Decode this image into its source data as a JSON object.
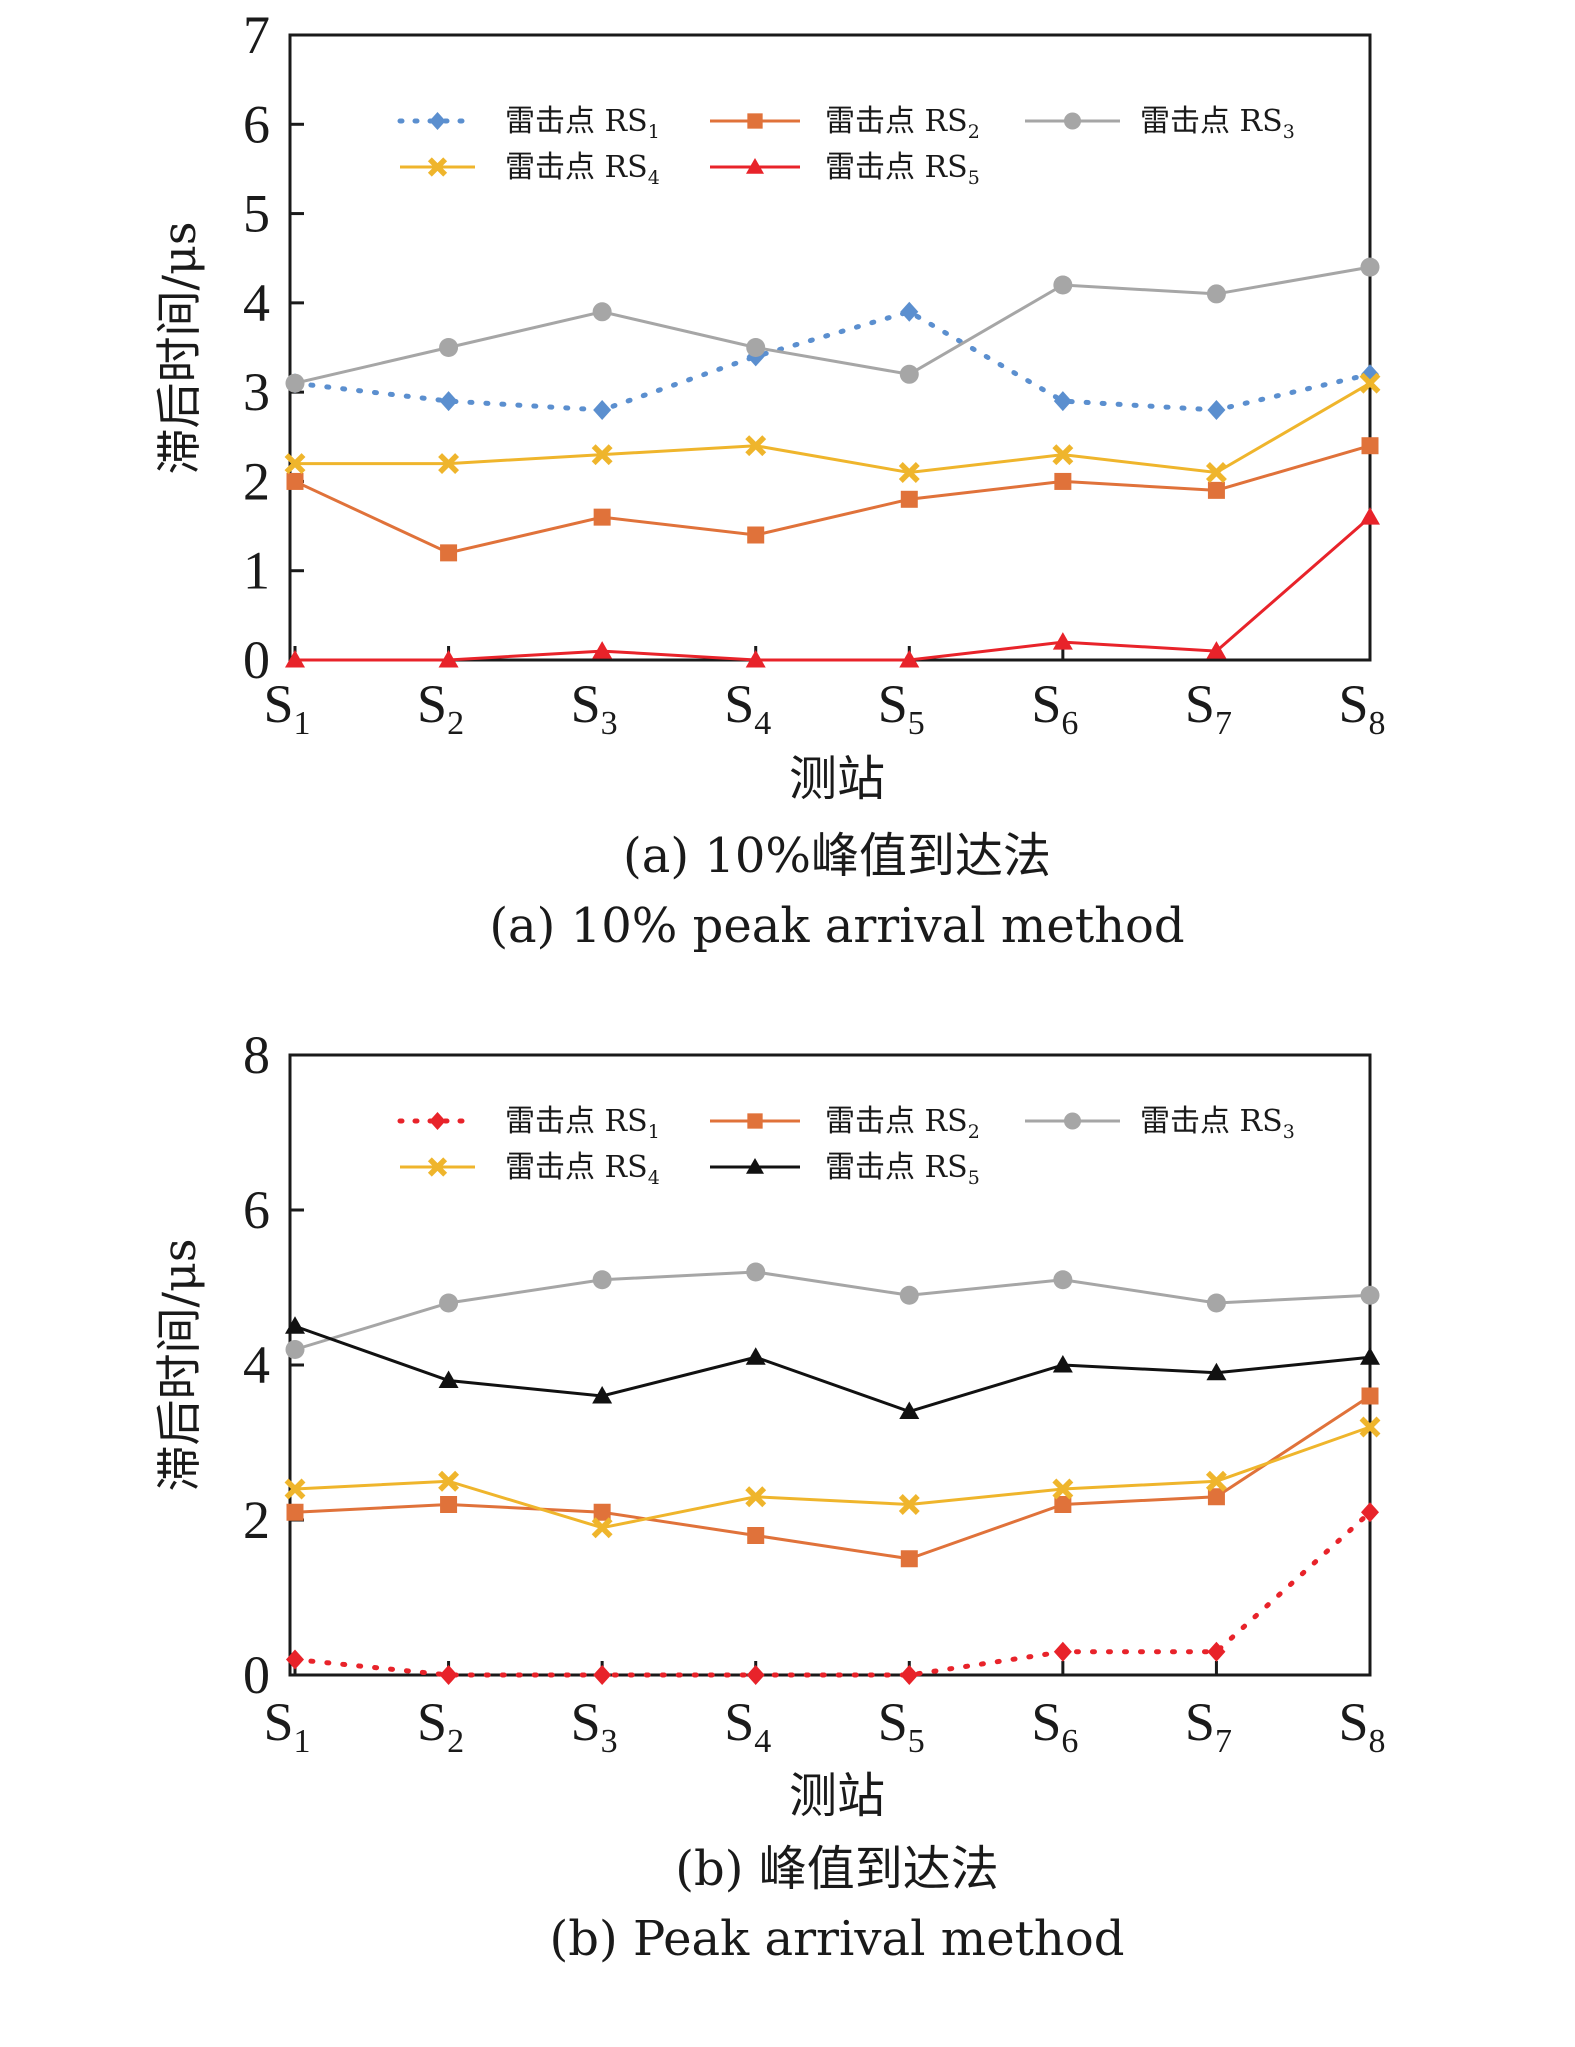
{
  "chart_data": [
    {
      "type": "line",
      "ylabel": "滞后时间/μs",
      "xlabel": "测站",
      "ylim": [
        0,
        7
      ],
      "yticks": [
        0,
        1,
        2,
        3,
        4,
        5,
        6,
        7
      ],
      "categories": [
        {
          "base": "S",
          "sub": "1"
        },
        {
          "base": "S",
          "sub": "2"
        },
        {
          "base": "S",
          "sub": "3"
        },
        {
          "base": "S",
          "sub": "4"
        },
        {
          "base": "S",
          "sub": "5"
        },
        {
          "base": "S",
          "sub": "6"
        },
        {
          "base": "S",
          "sub": "7"
        },
        {
          "base": "S",
          "sub": "8"
        }
      ],
      "caption_cn": "(a) 10%峰值到达法",
      "caption_en": "(a) 10% peak arrival method",
      "legend_position": "top",
      "series": [
        {
          "name": "雷击点 RS",
          "name_sub": "1",
          "color": "#5b8fcf",
          "marker": "diamond",
          "dash": "dotted",
          "values": [
            3.1,
            2.9,
            2.8,
            3.4,
            3.9,
            2.9,
            2.8,
            3.2
          ]
        },
        {
          "name": "雷击点 RS",
          "name_sub": "2",
          "color": "#e0723a",
          "marker": "square",
          "dash": "solid",
          "values": [
            2.0,
            1.2,
            1.6,
            1.4,
            1.8,
            2.0,
            1.9,
            2.4
          ]
        },
        {
          "name": "雷击点 RS",
          "name_sub": "3",
          "color": "#a6a6a6",
          "marker": "circle",
          "dash": "solid",
          "values": [
            3.1,
            3.5,
            3.9,
            3.5,
            3.2,
            4.2,
            4.1,
            4.4
          ]
        },
        {
          "name": "雷击点 RS",
          "name_sub": "4",
          "color": "#efb52c",
          "marker": "x",
          "dash": "solid",
          "values": [
            2.2,
            2.2,
            2.3,
            2.4,
            2.1,
            2.3,
            2.1,
            3.1
          ]
        },
        {
          "name": "雷击点 RS",
          "name_sub": "5",
          "color": "#e8232a",
          "marker": "triangle",
          "dash": "solid",
          "values": [
            0.0,
            0.0,
            0.1,
            0.0,
            0.0,
            0.2,
            0.1,
            1.6
          ]
        }
      ]
    },
    {
      "type": "line",
      "ylabel": "滞后时间/μs",
      "xlabel": "测站",
      "ylim": [
        0,
        8
      ],
      "yticks": [
        0,
        2,
        4,
        6,
        8
      ],
      "categories": [
        {
          "base": "S",
          "sub": "1"
        },
        {
          "base": "S",
          "sub": "2"
        },
        {
          "base": "S",
          "sub": "3"
        },
        {
          "base": "S",
          "sub": "4"
        },
        {
          "base": "S",
          "sub": "5"
        },
        {
          "base": "S",
          "sub": "6"
        },
        {
          "base": "S",
          "sub": "7"
        },
        {
          "base": "S",
          "sub": "8"
        }
      ],
      "caption_cn": "(b) 峰值到达法",
      "caption_en": "(b) Peak arrival method",
      "legend_position": "top",
      "series": [
        {
          "name": "雷击点 RS",
          "name_sub": "1",
          "color": "#e8232a",
          "marker": "diamond",
          "dash": "dotted",
          "values": [
            0.2,
            0.0,
            0.0,
            0.0,
            0.0,
            0.3,
            0.3,
            2.1
          ]
        },
        {
          "name": "雷击点 RS",
          "name_sub": "2",
          "color": "#e0723a",
          "marker": "square",
          "dash": "solid",
          "values": [
            2.1,
            2.2,
            2.1,
            1.8,
            1.5,
            2.2,
            2.3,
            3.6
          ]
        },
        {
          "name": "雷击点 RS",
          "name_sub": "3",
          "color": "#a6a6a6",
          "marker": "circle",
          "dash": "solid",
          "values": [
            4.2,
            4.8,
            5.1,
            5.2,
            4.9,
            5.1,
            4.8,
            4.9
          ]
        },
        {
          "name": "雷击点 RS",
          "name_sub": "4",
          "color": "#efb52c",
          "marker": "x",
          "dash": "solid",
          "values": [
            2.4,
            2.5,
            1.9,
            2.3,
            2.2,
            2.4,
            2.5,
            3.2
          ]
        },
        {
          "name": "雷击点 RS",
          "name_sub": "5",
          "color": "#111111",
          "marker": "triangle",
          "dash": "solid",
          "values": [
            4.5,
            3.8,
            3.6,
            4.1,
            3.4,
            4.0,
            3.9,
            4.1
          ]
        }
      ]
    }
  ]
}
